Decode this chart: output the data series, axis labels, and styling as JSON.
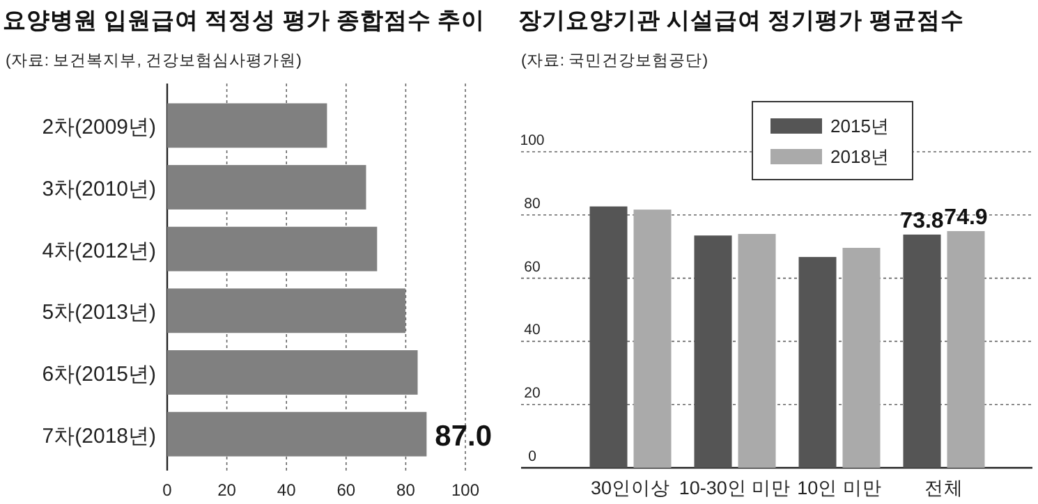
{
  "chart_data": [
    {
      "type": "bar",
      "orientation": "horizontal",
      "title": "요양병원 입원급여 적정성 평가 종합점수 추이",
      "subtitle": "(자료: 보건복지부, 건강보험심사평가원)",
      "categories": [
        "2차(2009년)",
        "3차(2010년)",
        "4차(2012년)",
        "5차(2013년)",
        "6차(2015년)",
        "7차(2018년)"
      ],
      "values": [
        53.6,
        66.7,
        70.4,
        79.9,
        84,
        87.0
      ],
      "color": "#808080",
      "value_labels": [
        null,
        null,
        null,
        null,
        null,
        "87.0"
      ],
      "xlim": [
        0,
        100
      ],
      "xticks": [
        0,
        20,
        40,
        60,
        80,
        100
      ],
      "grid": "x"
    },
    {
      "type": "bar",
      "title": "장기요양기관 시설급여 정기평가 평균점수",
      "subtitle": "(자료: 국민건강보험공단)",
      "categories": [
        "30인이상",
        "10-30인 미만",
        "10인 미만",
        "전체"
      ],
      "series": [
        {
          "name": "2015년",
          "color": "#555555",
          "values": [
            82.7,
            73.5,
            66.7,
            73.8
          ],
          "value_labels": [
            null,
            null,
            null,
            "73.8"
          ]
        },
        {
          "name": "2018년",
          "color": "#aaaaaa",
          "values": [
            81.7,
            74.0,
            69.6,
            74.9
          ],
          "value_labels": [
            null,
            null,
            null,
            "74.9"
          ]
        }
      ],
      "ylim": [
        0,
        100
      ],
      "yticks": [
        0,
        20,
        40,
        60,
        80,
        100
      ],
      "grid": "y",
      "legend": "top"
    }
  ]
}
